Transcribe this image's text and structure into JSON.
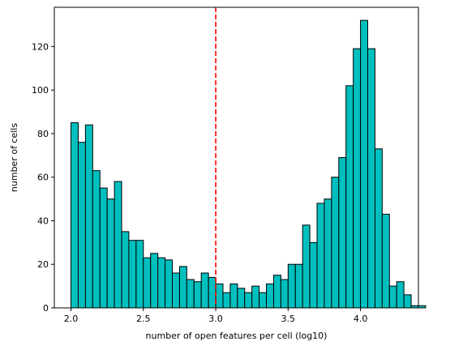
{
  "chart_data": {
    "type": "bar",
    "subtype": "histogram",
    "xlabel": "number of open features per cell (log10)",
    "ylabel": "number of cells",
    "xlim": [
      1.885,
      4.4
    ],
    "ylim": [
      0,
      138
    ],
    "x_ticks": [
      "2.0",
      "2.5",
      "3.0",
      "3.5",
      "4.0"
    ],
    "y_ticks": [
      "0",
      "20",
      "40",
      "60",
      "80",
      "100",
      "120"
    ],
    "bin_start": 2.0,
    "bin_width": 0.05,
    "values": [
      85,
      76,
      84,
      63,
      55,
      50,
      58,
      35,
      31,
      31,
      23,
      25,
      23,
      22,
      16,
      19,
      13,
      12,
      16,
      14,
      11,
      7,
      11,
      9,
      7,
      10,
      7,
      11,
      15,
      13,
      20,
      20,
      38,
      30,
      48,
      50,
      60,
      69,
      102,
      119,
      132,
      119,
      73,
      43,
      10,
      12,
      6,
      1,
      1
    ],
    "threshold_line": {
      "x": 3.0,
      "style": "dashed",
      "color": "#ff0000"
    },
    "bar_color": "#00bfbf",
    "edge_color": "#000000",
    "grid": false
  }
}
